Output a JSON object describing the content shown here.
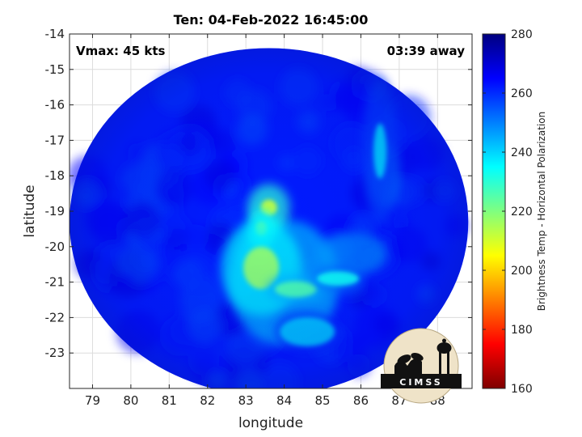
{
  "title": "Ten: 04-Feb-2022 16:45:00",
  "vmax_label": "Vmax: 45 kts",
  "time_away_label": "03:39 away",
  "logo_text": "CIMSS",
  "chart_data": {
    "type": "heatmap",
    "xlabel": "longitude",
    "ylabel": "latitude",
    "xlim": [
      78.4,
      88.9
    ],
    "ylim": [
      -24,
      -14
    ],
    "xticks": [
      79,
      80,
      81,
      82,
      83,
      84,
      85,
      86,
      87,
      88
    ],
    "yticks": [
      -14,
      -15,
      -16,
      -17,
      -18,
      -19,
      -20,
      -21,
      -22,
      -23
    ],
    "grid": true,
    "colorbar": {
      "label": "Brightness Temp - Horizontal Polarization",
      "range": [
        160,
        280
      ],
      "ticks": [
        280,
        260,
        240,
        220,
        200,
        180,
        160
      ],
      "colormap": [
        "#7f0000",
        "#ff0000",
        "#ffff00",
        "#00ffff",
        "#0000ff",
        "#00007f"
      ]
    },
    "swath": {
      "center_lon": 83.6,
      "center_lat": -19.3,
      "lon_radius": 5.2,
      "lat_radius": 4.9,
      "background_temp": 262
    },
    "features": [
      {
        "name": "warm core north",
        "lon": 83.6,
        "lat": -18.9,
        "temp": 212
      },
      {
        "name": "warm cell",
        "lon": 83.4,
        "lat": -19.5,
        "temp": 216
      },
      {
        "name": "main convection",
        "lon": 83.4,
        "lat": -20.6,
        "temp": 218
      },
      {
        "name": "convective band",
        "lon": 84.3,
        "lat": -21.2,
        "temp": 226
      },
      {
        "name": "feeder band east",
        "lon": 85.4,
        "lat": -20.9,
        "temp": 234
      },
      {
        "name": "southern band",
        "lon": 84.6,
        "lat": -22.4,
        "temp": 242
      },
      {
        "name": "northeast rainband",
        "lon": 86.5,
        "lat": -17.3,
        "temp": 240
      }
    ]
  }
}
